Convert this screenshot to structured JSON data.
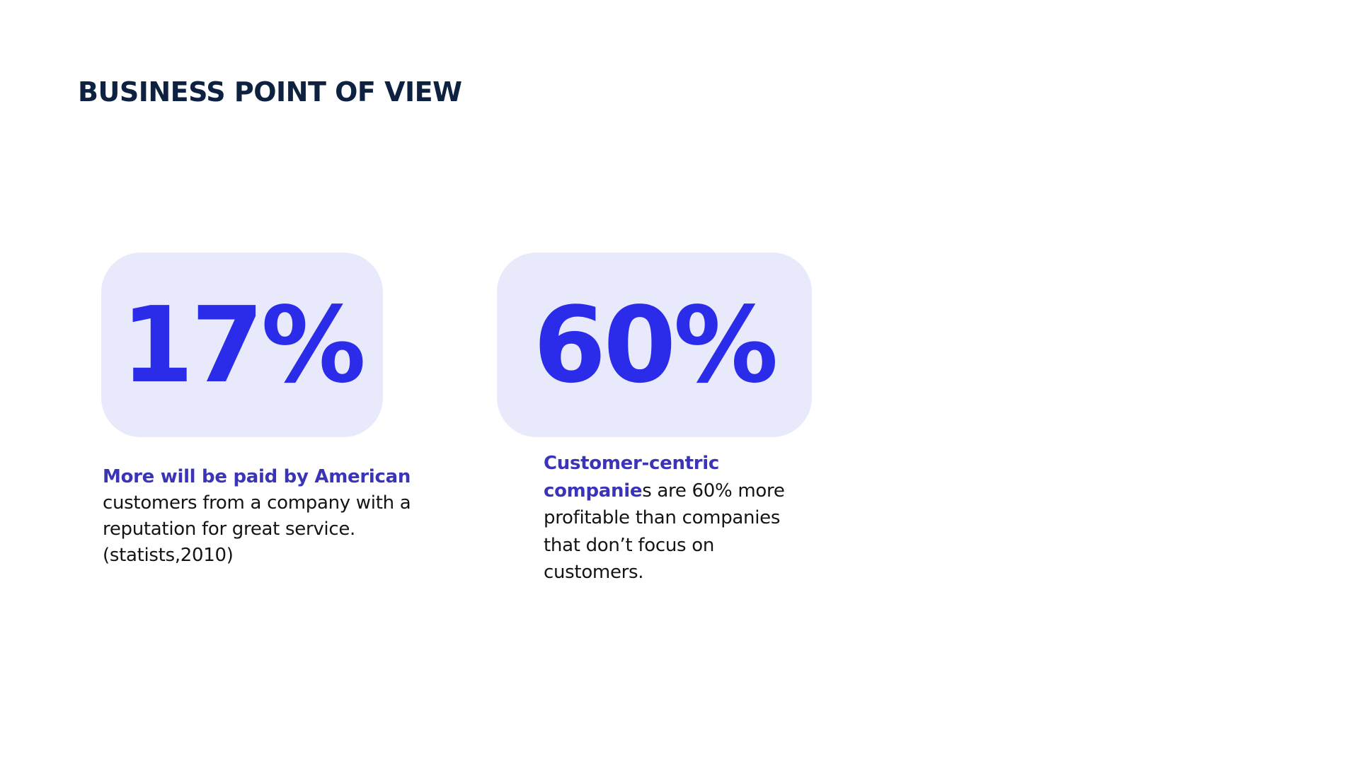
{
  "slide": {
    "title": "BUSINESS POINT OF VIEW"
  },
  "stats": [
    {
      "value": "17%",
      "description": {
        "line1_highlight": "More will be paid by American",
        "line2": "customers from a company with a",
        "line3": "reputation for great service.",
        "line4": "(statists,2010)"
      }
    },
    {
      "value": "60%",
      "description": {
        "line1_highlight": "Customer-centric",
        "line2_highlight": "companie",
        "line2_rest": "s are 60% more",
        "line3": "profitable than companies",
        "line4": "that don’t focus on",
        "line5": "customers."
      }
    }
  ],
  "colors": {
    "title": "#0f2140",
    "card_background": "#e8e9fb",
    "stat_value": "#2a2cea",
    "highlight_text": "#3a34b8",
    "body_text": "#141414"
  }
}
